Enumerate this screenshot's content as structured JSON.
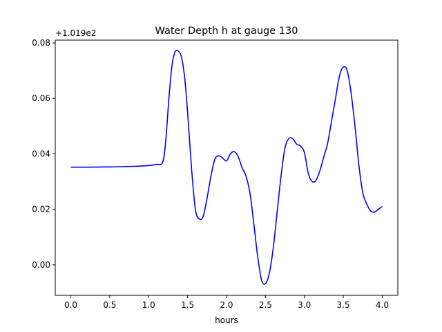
{
  "chart_data": {
    "type": "line",
    "title": "Water Depth h at gauge 130",
    "xlabel": "hours",
    "ylabel": "",
    "offset_label": "+1.019e2",
    "xlim": [
      -0.2,
      4.2
    ],
    "ylim": [
      -0.011,
      0.081
    ],
    "xticks": [
      0.0,
      0.5,
      1.0,
      1.5,
      2.0,
      2.5,
      3.0,
      3.5,
      4.0
    ],
    "xtick_labels": [
      "0.0",
      "0.5",
      "1.0",
      "1.5",
      "2.0",
      "2.5",
      "3.0",
      "3.5",
      "4.0"
    ],
    "yticks": [
      0.0,
      0.02,
      0.04,
      0.06,
      0.08
    ],
    "ytick_labels": [
      "0.00",
      "0.02",
      "0.04",
      "0.06",
      "0.08"
    ],
    "grid": false,
    "series": [
      {
        "color": "#0000ff",
        "x": [
          0.0,
          0.2,
          0.5,
          0.8,
          1.0,
          1.1,
          1.18,
          1.22,
          1.26,
          1.3,
          1.34,
          1.38,
          1.42,
          1.46,
          1.5,
          1.55,
          1.6,
          1.65,
          1.7,
          1.75,
          1.8,
          1.85,
          1.9,
          1.95,
          2.0,
          2.05,
          2.1,
          2.15,
          2.2,
          2.25,
          2.3,
          2.35,
          2.4,
          2.45,
          2.5,
          2.55,
          2.6,
          2.65,
          2.7,
          2.75,
          2.8,
          2.85,
          2.9,
          2.95,
          3.0,
          3.05,
          3.1,
          3.15,
          3.2,
          3.25,
          3.3,
          3.35,
          3.4,
          3.45,
          3.5,
          3.55,
          3.6,
          3.65,
          3.7,
          3.75,
          3.8,
          3.85,
          3.9,
          3.95,
          4.0
        ],
        "y": [
          0.0352,
          0.0352,
          0.0353,
          0.0355,
          0.0358,
          0.0362,
          0.037,
          0.045,
          0.06,
          0.072,
          0.0768,
          0.077,
          0.075,
          0.068,
          0.055,
          0.035,
          0.02,
          0.0165,
          0.0175,
          0.024,
          0.032,
          0.038,
          0.0393,
          0.0385,
          0.0375,
          0.04,
          0.0408,
          0.039,
          0.035,
          0.032,
          0.026,
          0.015,
          0.003,
          -0.0055,
          -0.0068,
          -0.003,
          0.006,
          0.019,
          0.032,
          0.042,
          0.0455,
          0.0455,
          0.0435,
          0.0428,
          0.0405,
          0.033,
          0.03,
          0.0305,
          0.034,
          0.039,
          0.044,
          0.052,
          0.06,
          0.068,
          0.0713,
          0.07,
          0.062,
          0.05,
          0.036,
          0.026,
          0.022,
          0.0195,
          0.019,
          0.02,
          0.021
        ]
      }
    ]
  }
}
